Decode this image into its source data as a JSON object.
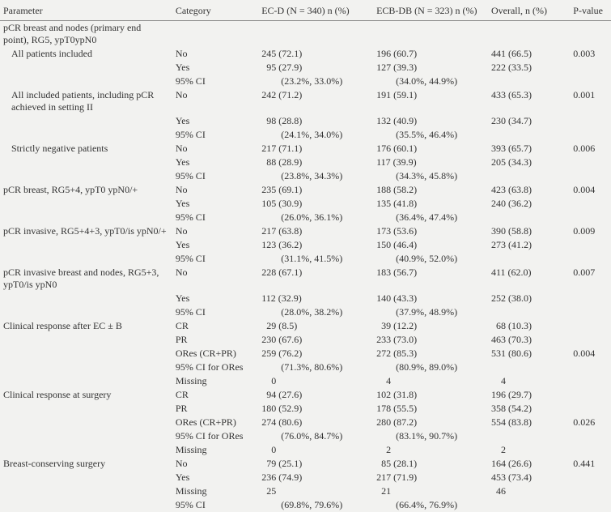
{
  "columns": {
    "parameter": "Parameter",
    "category": "Category",
    "ecd": "EC-D (N = 340) n (%)",
    "ecbdb": "ECB-DB (N = 323) n (%)",
    "overall": "Overall, n (%)",
    "pvalue": "P-value"
  },
  "rows": [
    {
      "p": "pCR breast and nodes (primary end point), RG5, ypT0ypN0",
      "c": "",
      "a": "",
      "b": "",
      "o": "",
      "pv": ""
    },
    {
      "p": "All patients included",
      "indent": 1,
      "c": "No",
      "a": "245 (72.1)",
      "b": "196 (60.7)",
      "o": "441 (66.5)",
      "pv": "0.003"
    },
    {
      "p": "",
      "c": "Yes",
      "a": "  95 (27.9)",
      "b": "127 (39.3)",
      "o": "222 (33.5)",
      "pv": ""
    },
    {
      "p": "",
      "c": "95% CI",
      "a": "        (23.2%, 33.0%)",
      "b": "        (34.0%, 44.9%)",
      "o": "",
      "pv": ""
    },
    {
      "p": "All included patients, including pCR achieved in setting II",
      "indent": 1,
      "c": "No",
      "a": "242 (71.2)",
      "b": "191 (59.1)",
      "o": "433 (65.3)",
      "pv": "0.001"
    },
    {
      "p": "",
      "c": "Yes",
      "a": "  98 (28.8)",
      "b": "132 (40.9)",
      "o": "230 (34.7)",
      "pv": ""
    },
    {
      "p": "",
      "c": "95% CI",
      "a": "        (24.1%, 34.0%)",
      "b": "        (35.5%, 46.4%)",
      "o": "",
      "pv": ""
    },
    {
      "p": "Strictly negative patients",
      "indent": 1,
      "c": "No",
      "a": "217 (71.1)",
      "b": "176 (60.1)",
      "o": "393 (65.7)",
      "pv": "0.006"
    },
    {
      "p": "",
      "c": "Yes",
      "a": "  88 (28.9)",
      "b": "117 (39.9)",
      "o": "205 (34.3)",
      "pv": ""
    },
    {
      "p": "",
      "c": "95% CI",
      "a": "        (23.8%, 34.3%)",
      "b": "        (34.3%, 45.8%)",
      "o": "",
      "pv": ""
    },
    {
      "p": "pCR breast, RG5+4, ypT0 ypN0/+",
      "c": "No",
      "a": "235 (69.1)",
      "b": "188 (58.2)",
      "o": "423 (63.8)",
      "pv": "0.004"
    },
    {
      "p": "",
      "c": "Yes",
      "a": "105 (30.9)",
      "b": "135 (41.8)",
      "o": "240 (36.2)",
      "pv": ""
    },
    {
      "p": "",
      "c": "95% CI",
      "a": "        (26.0%, 36.1%)",
      "b": "        (36.4%, 47.4%)",
      "o": "",
      "pv": ""
    },
    {
      "p": "pCR invasive, RG5+4+3, ypT0/is ypN0/+",
      "c": "No",
      "a": "217 (63.8)",
      "b": "173 (53.6)",
      "o": "390 (58.8)",
      "pv": "0.009"
    },
    {
      "p": "",
      "c": "Yes",
      "a": "123 (36.2)",
      "b": "150 (46.4)",
      "o": "273 (41.2)",
      "pv": ""
    },
    {
      "p": "",
      "c": "95% CI",
      "a": "        (31.1%, 41.5%)",
      "b": "        (40.9%, 52.0%)",
      "o": "",
      "pv": ""
    },
    {
      "p": "pCR invasive breast and nodes, RG5+3, ypT0/is ypN0",
      "c": "No",
      "a": "228 (67.1)",
      "b": "183 (56.7)",
      "o": "411 (62.0)",
      "pv": "0.007"
    },
    {
      "p": "",
      "c": "Yes",
      "a": "112 (32.9)",
      "b": "140 (43.3)",
      "o": "252 (38.0)",
      "pv": ""
    },
    {
      "p": "",
      "c": "95% CI",
      "a": "        (28.0%, 38.2%)",
      "b": "        (37.9%, 48.9%)",
      "o": "",
      "pv": ""
    },
    {
      "p": "Clinical response after EC ± B",
      "c": "CR",
      "a": "  29 (8.5)",
      "b": "  39 (12.2)",
      "o": "  68 (10.3)",
      "pv": ""
    },
    {
      "p": "",
      "c": "PR",
      "a": "230 (67.6)",
      "b": "233 (73.0)",
      "o": "463 (70.3)",
      "pv": ""
    },
    {
      "p": "",
      "c": "ORes (CR+PR)",
      "a": "259 (76.2)",
      "b": "272 (85.3)",
      "o": "531 (80.6)",
      "pv": "0.004"
    },
    {
      "p": "",
      "c": "95% CI for ORes",
      "a": "        (71.3%, 80.6%)",
      "b": "        (80.9%, 89.0%)",
      "o": "",
      "pv": ""
    },
    {
      "p": "",
      "c": "Missing",
      "a": "    0",
      "b": "    4",
      "o": "    4",
      "pv": ""
    },
    {
      "p": "Clinical response at surgery",
      "c": "CR",
      "a": "  94 (27.6)",
      "b": "102 (31.8)",
      "o": "196 (29.7)",
      "pv": ""
    },
    {
      "p": "",
      "c": "PR",
      "a": "180 (52.9)",
      "b": "178 (55.5)",
      "o": "358 (54.2)",
      "pv": ""
    },
    {
      "p": "",
      "c": "ORes (CR+PR)",
      "a": "274 (80.6)",
      "b": "280 (87.2)",
      "o": "554 (83.8)",
      "pv": "0.026"
    },
    {
      "p": "",
      "c": "95% CI for ORes",
      "a": "        (76.0%, 84.7%)",
      "b": "        (83.1%, 90.7%)",
      "o": "",
      "pv": ""
    },
    {
      "p": "",
      "c": "Missing",
      "a": "    0",
      "b": "    2",
      "o": "    2",
      "pv": ""
    },
    {
      "p": "Breast-conserving surgery",
      "c": "No",
      "a": "  79 (25.1)",
      "b": "  85 (28.1)",
      "o": "164 (26.6)",
      "pv": "0.441"
    },
    {
      "p": "",
      "c": "Yes",
      "a": "236 (74.9)",
      "b": "217 (71.9)",
      "o": "453 (73.4)",
      "pv": ""
    },
    {
      "p": "",
      "c": "Missing",
      "a": "  25",
      "b": "  21",
      "o": "  46",
      "pv": ""
    },
    {
      "p": "",
      "c": "95% CI",
      "a": "        (69.8%, 79.6%)",
      "b": "        (66.4%, 76.9%)",
      "o": "",
      "pv": ""
    }
  ]
}
